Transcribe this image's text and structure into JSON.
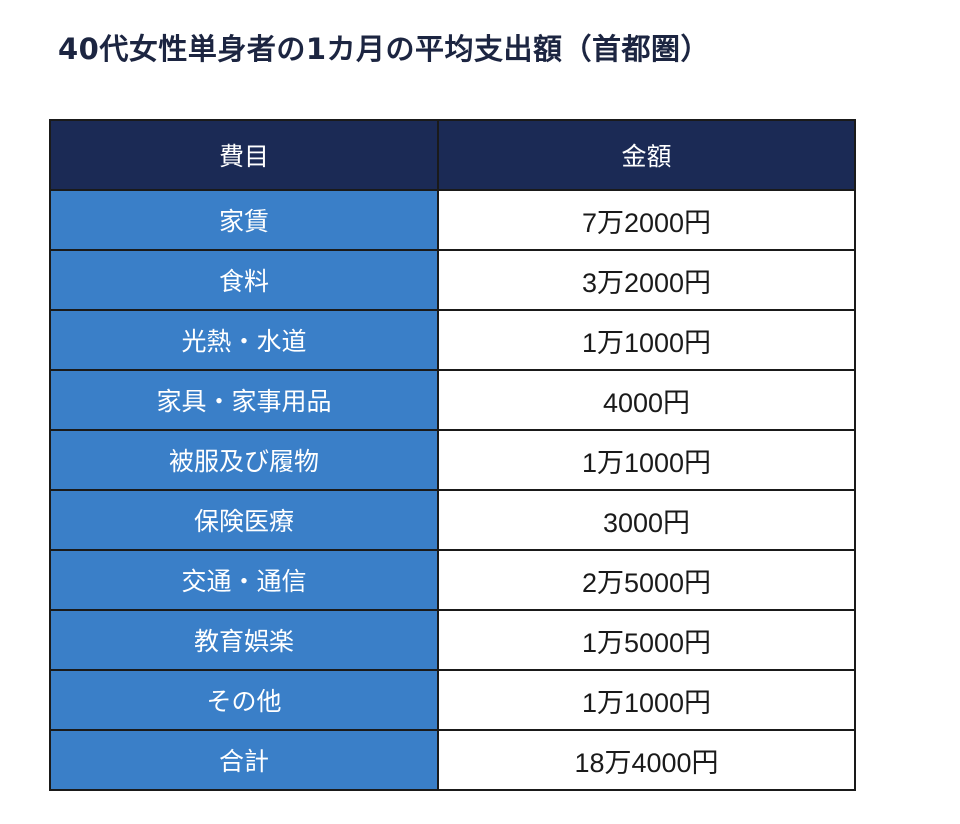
{
  "title": "40代女性単身者の1カ月の平均支出額（首都圏）",
  "table": {
    "headers": [
      "費目",
      "金額"
    ],
    "rows": [
      {
        "category": "家賃",
        "amount": "7万2000円"
      },
      {
        "category": "食料",
        "amount": "3万2000円"
      },
      {
        "category": "光熱・水道",
        "amount": "1万1000円"
      },
      {
        "category": "家具・家事用品",
        "amount": "4000円"
      },
      {
        "category": "被服及び履物",
        "amount": "1万1000円"
      },
      {
        "category": "保険医療",
        "amount": "3000円"
      },
      {
        "category": "交通・通信",
        "amount": "2万5000円"
      },
      {
        "category": "教育娯楽",
        "amount": "1万5000円"
      },
      {
        "category": "その他",
        "amount": "1万1000円"
      },
      {
        "category": "合計",
        "amount": "18万4000円"
      }
    ]
  },
  "colors": {
    "header_bg": "#1b2a55",
    "category_bg": "#3a7fc8",
    "title_text": "#1c2541"
  }
}
